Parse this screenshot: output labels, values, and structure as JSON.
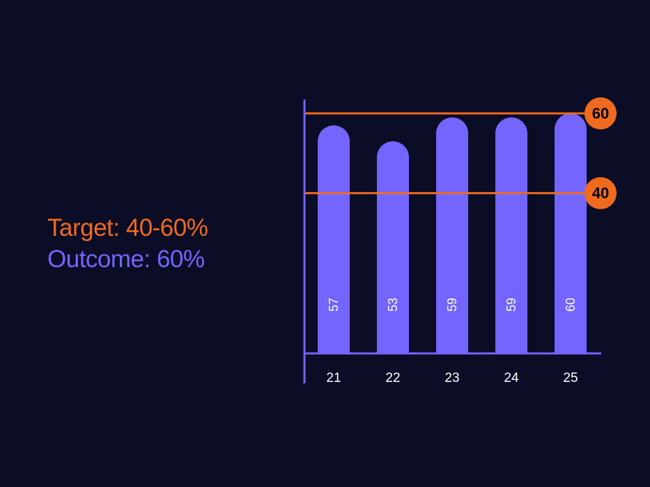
{
  "legend": {
    "target_text": "Target: 40-60%",
    "outcome_text": "Outcome: 60%"
  },
  "colors": {
    "background": "#0b0c25",
    "target": "#f06a1e",
    "outcome": "#7465ff",
    "axis": "#7465ff",
    "bar_label": "#ffffff"
  },
  "chart_data": {
    "type": "bar",
    "categories": [
      "21",
      "22",
      "23",
      "24",
      "25"
    ],
    "values": [
      57,
      53,
      59,
      59,
      60
    ],
    "bar_labels": [
      "57",
      "53",
      "59",
      "59",
      "60"
    ],
    "reference_lines": [
      {
        "value": 60,
        "label": "60"
      },
      {
        "value": 40,
        "label": "40"
      }
    ],
    "ylim": [
      0,
      60
    ],
    "grid": false,
    "legend_position": "left"
  }
}
